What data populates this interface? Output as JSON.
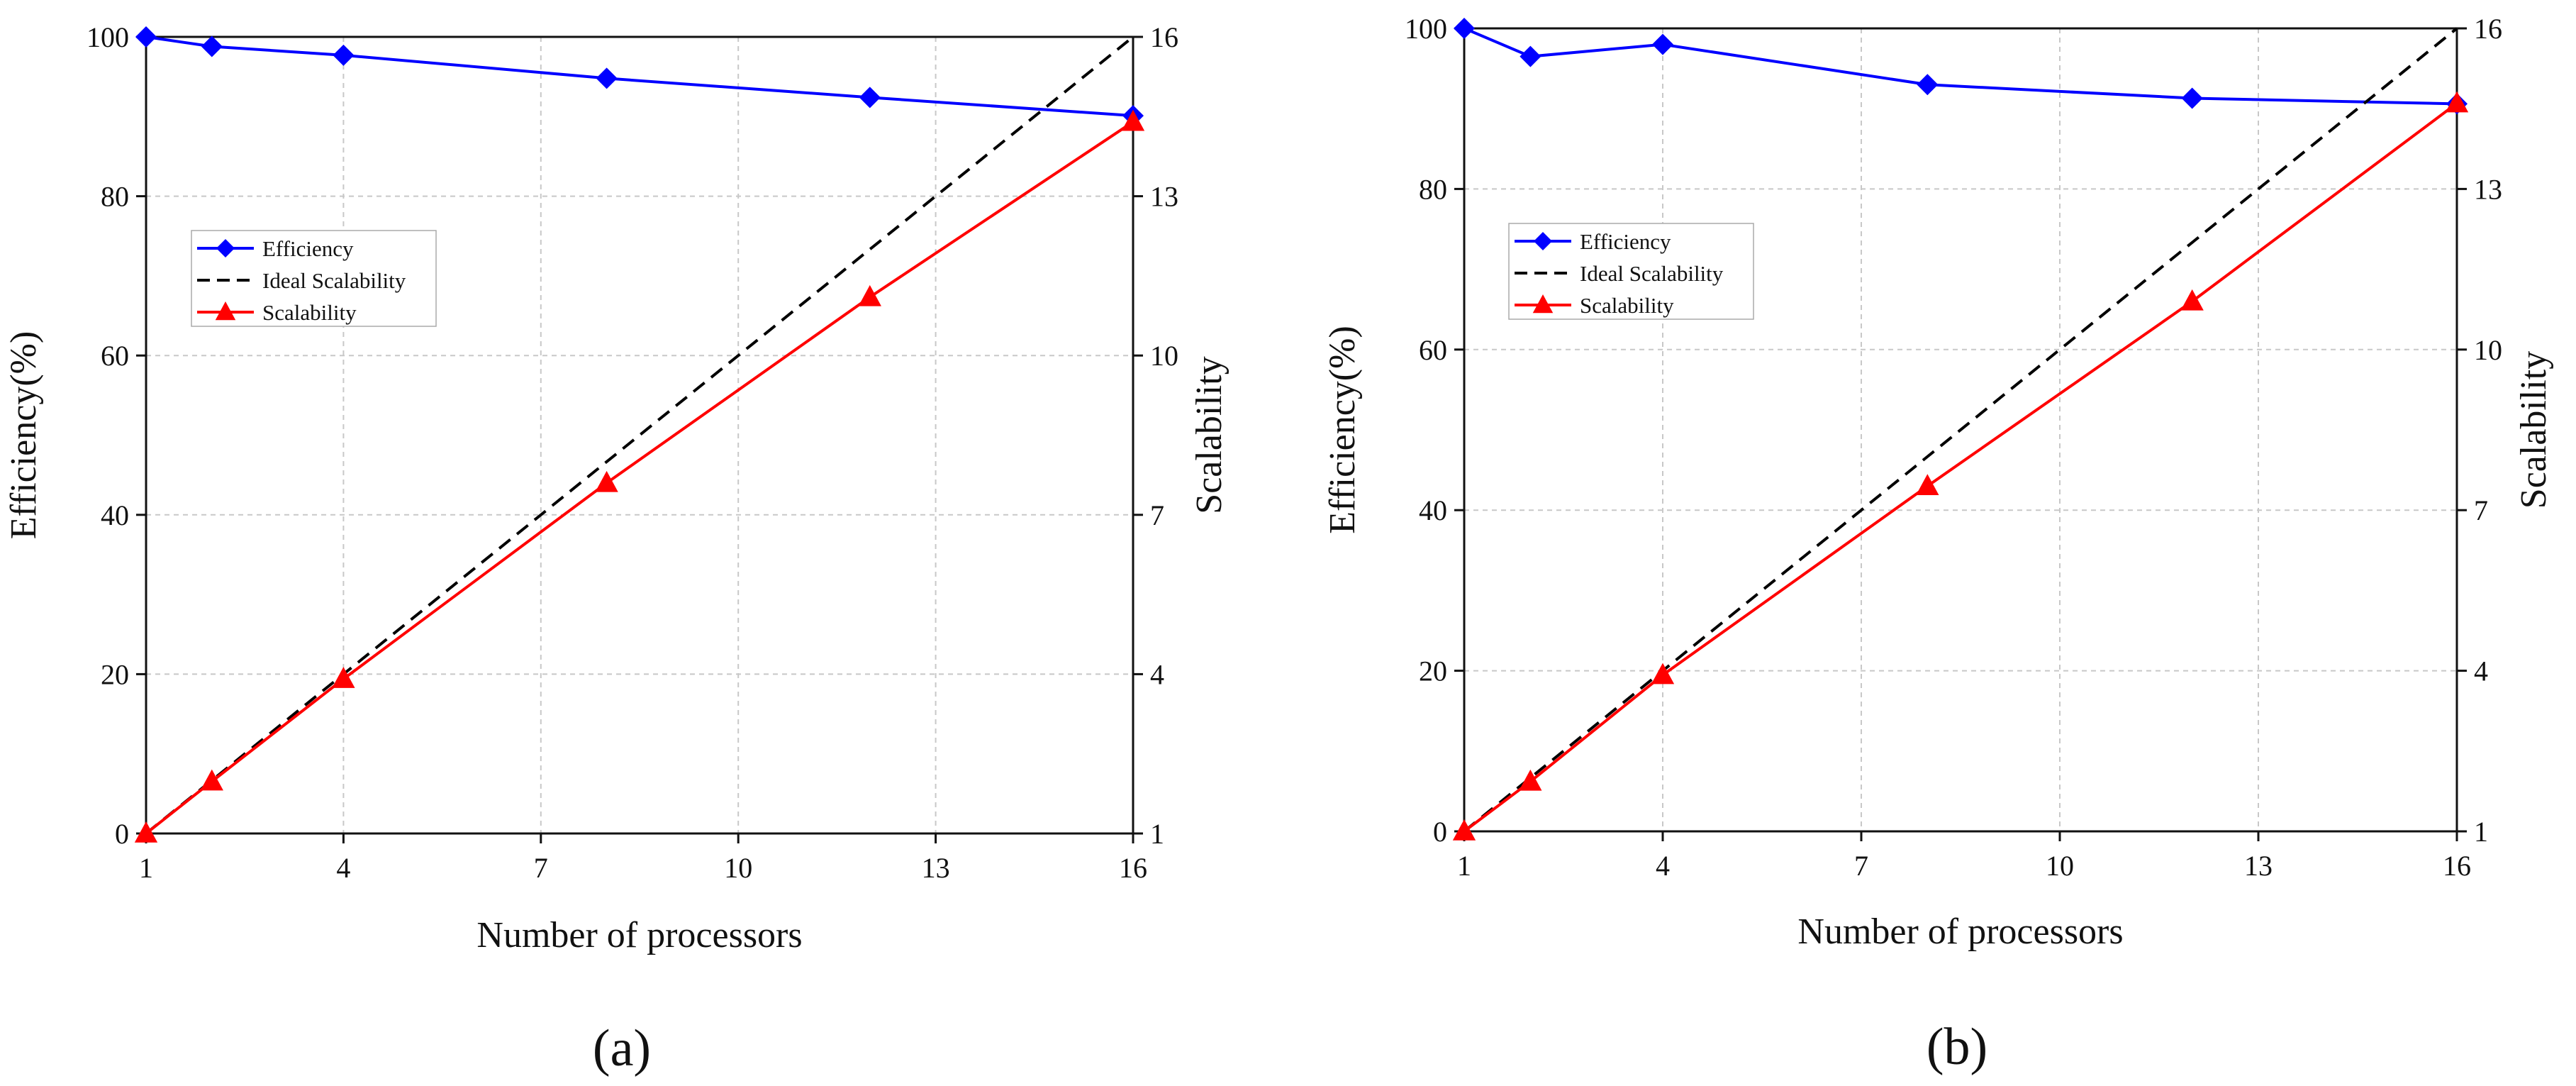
{
  "colors": {
    "efficiency": "#0000ff",
    "ideal": "#000000",
    "scalability": "#ff0000",
    "grid": "#c8c8c8",
    "axis": "#111111"
  },
  "chart_data": [
    {
      "type": "line",
      "caption": "(a)",
      "xlabel": "Number of processors",
      "ylabel": "Efficiency(%)",
      "y2label": "Scalability",
      "xlim": [
        1,
        16
      ],
      "ylim": [
        0,
        100
      ],
      "y2lim": [
        1,
        16
      ],
      "xticks": [
        "1",
        "4",
        "7",
        "10",
        "13",
        "16"
      ],
      "yticks": [
        "0",
        "20",
        "40",
        "60",
        "80",
        "100"
      ],
      "y2ticks": [
        "1",
        "4",
        "7",
        "10",
        "13",
        "16"
      ],
      "grid": true,
      "legend_position": "upper-left",
      "series": [
        {
          "name": "Efficiency",
          "axis": "left",
          "marker": "diamond",
          "style": "solid",
          "x": [
            1,
            2,
            4,
            8,
            12,
            16
          ],
          "y": [
            100,
            98.8,
            97.7,
            94.8,
            92.4,
            90.1
          ]
        },
        {
          "name": "Ideal Scalability",
          "axis": "right",
          "marker": "none",
          "style": "dashed",
          "x": [
            1,
            16
          ],
          "y": [
            1,
            16
          ]
        },
        {
          "name": "Scalability",
          "axis": "right",
          "marker": "triangle",
          "style": "solid",
          "x": [
            1,
            2,
            4,
            8,
            12,
            16
          ],
          "y": [
            1,
            1.98,
            3.91,
            7.6,
            11.1,
            14.4
          ]
        }
      ]
    },
    {
      "type": "line",
      "caption": "(b)",
      "xlabel": "Number of processors",
      "ylabel": "Efficiency(%)",
      "y2label": "Scalability",
      "xlim": [
        1,
        16
      ],
      "ylim": [
        0,
        100
      ],
      "y2lim": [
        1,
        16
      ],
      "xticks": [
        "1",
        "4",
        "7",
        "10",
        "13",
        "16"
      ],
      "yticks": [
        "0",
        "20",
        "40",
        "60",
        "80",
        "100"
      ],
      "y2ticks": [
        "1",
        "4",
        "7",
        "10",
        "13",
        "16"
      ],
      "grid": true,
      "legend_position": "upper-left",
      "series": [
        {
          "name": "Efficiency",
          "axis": "left",
          "marker": "diamond",
          "style": "solid",
          "x": [
            1,
            2,
            4,
            8,
            12,
            16
          ],
          "y": [
            100,
            96.5,
            98,
            93,
            91.3,
            90.6
          ]
        },
        {
          "name": "Ideal Scalability",
          "axis": "right",
          "marker": "none",
          "style": "dashed",
          "x": [
            1,
            16
          ],
          "y": [
            1,
            16
          ]
        },
        {
          "name": "Scalability",
          "axis": "right",
          "marker": "triangle",
          "style": "solid",
          "x": [
            1,
            2,
            4,
            8,
            12,
            16
          ],
          "y": [
            1,
            1.93,
            3.92,
            7.45,
            10.9,
            14.6
          ]
        }
      ]
    }
  ]
}
